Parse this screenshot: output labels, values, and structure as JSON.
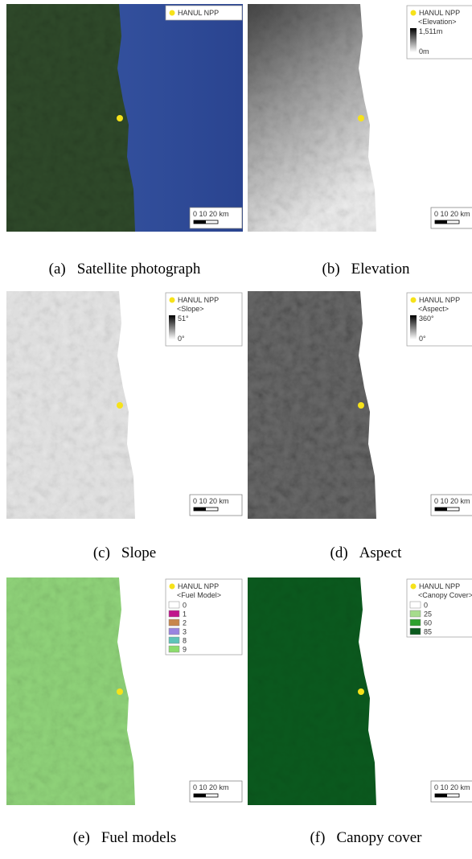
{
  "panels": [
    {
      "label": "(a)",
      "caption": "Satellite photograph",
      "legend": {
        "marker": "HANUL NPP"
      },
      "scale": "0 10 20 km"
    },
    {
      "label": "(b)",
      "caption": "Elevation",
      "legend": {
        "marker": "HANUL NPP",
        "title": "<Elevation>",
        "max": "1,511m",
        "min": "0m"
      },
      "scale": "0 10 20 km"
    },
    {
      "label": "(c)",
      "caption": "Slope",
      "legend": {
        "marker": "HANUL NPP",
        "title": "<Slope>",
        "max": "51°",
        "min": "0°"
      },
      "scale": "0 10 20 km"
    },
    {
      "label": "(d)",
      "caption": "Aspect",
      "legend": {
        "marker": "HANUL NPP",
        "title": "<Aspect>",
        "max": "360°",
        "min": "0°"
      },
      "scale": "0 10 20 km"
    },
    {
      "label": "(e)",
      "caption": "Fuel models",
      "legend": {
        "marker": "HANUL NPP",
        "title": "<Fuel Model>",
        "classes": [
          {
            "label": "0",
            "color": "#ffffff"
          },
          {
            "label": "1",
            "color": "#c0168c"
          },
          {
            "label": "2",
            "color": "#c8864a"
          },
          {
            "label": "3",
            "color": "#9a84e0"
          },
          {
            "label": "8",
            "color": "#5ec4b8"
          },
          {
            "label": "9",
            "color": "#8cdc6c"
          }
        ]
      },
      "scale": "0 10 20 km"
    },
    {
      "label": "(f)",
      "caption": "Canopy cover",
      "legend": {
        "marker": "HANUL NPP",
        "title": "<Canopy Cover>",
        "classes": [
          {
            "label": "0",
            "color": "#ffffff"
          },
          {
            "label": "25",
            "color": "#a6dc8c"
          },
          {
            "label": "60",
            "color": "#2ea02e"
          },
          {
            "label": "85",
            "color": "#0b5a1e"
          }
        ]
      },
      "scale": "0 10 20 km"
    }
  ]
}
